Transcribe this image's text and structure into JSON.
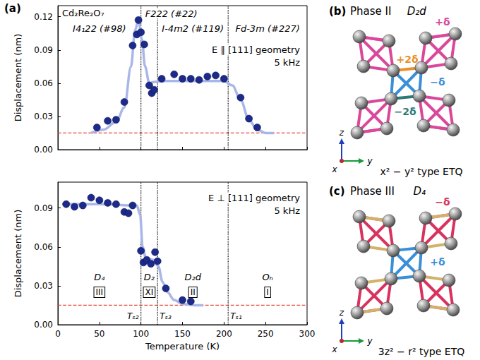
{
  "chart_data": [
    {
      "type": "scatter",
      "panel": "(a)",
      "tick_labels": "y",
      "grid": false,
      "material": "Cd₂Re₂O₇",
      "geometry": "E ∥ [111] geometry",
      "frequency": "5 kHz",
      "space_groups": [
        "I4₁22 (#98)",
        "F222 (#22)",
        "I-4m2 (#119)",
        "Fd-3m (#227)"
      ],
      "y_label": "Displacement (nm)",
      "xlim": [
        0,
        300
      ],
      "xticks": [
        0,
        50,
        100,
        150,
        200,
        250,
        300
      ],
      "ylim": [
        0,
        0.13
      ],
      "yticks": [
        {
          "value": 0,
          "label": "0.00"
        },
        0.03,
        0.06,
        0.09,
        0.12
      ],
      "points": {
        "color": "#1c2a8c",
        "marker": "circle",
        "x": [
          47,
          60,
          70,
          80,
          90,
          95,
          97,
          100,
          104,
          110,
          113,
          116,
          125,
          140,
          150,
          160,
          170,
          180,
          190,
          200,
          220,
          230,
          240
        ],
        "values": [
          0.02,
          0.026,
          0.027,
          0.043,
          0.094,
          0.104,
          0.117,
          0.106,
          0.095,
          0.058,
          0.051,
          0.054,
          0.064,
          0.068,
          0.064,
          0.064,
          0.063,
          0.066,
          0.067,
          0.064,
          0.047,
          0.028,
          0.02
        ]
      },
      "fit": {
        "color": "#a9b6e8",
        "line_style": "solid",
        "x": [
          40,
          55,
          70,
          80,
          88,
          93,
          97,
          101,
          105,
          110,
          115,
          125,
          150,
          200,
          210,
          220,
          230,
          240,
          250,
          260
        ],
        "values": [
          0.015,
          0.018,
          0.025,
          0.038,
          0.075,
          0.108,
          0.117,
          0.1,
          0.075,
          0.06,
          0.061,
          0.062,
          0.062,
          0.062,
          0.058,
          0.045,
          0.027,
          0.018,
          0.015,
          0.015
        ]
      },
      "baseline": {
        "value": 0.015,
        "color": "#e8453c",
        "line_style": "dashed"
      },
      "vlines": [
        {
          "x": 100
        },
        {
          "x": 120
        },
        {
          "x": 205
        }
      ]
    },
    {
      "type": "scatter",
      "tick_labels": true,
      "grid": false,
      "geometry": "E ⊥ [111] geometry",
      "frequency": "5 kHz",
      "phases": [
        {
          "symmetry": "D₄",
          "phase": "III"
        },
        {
          "symmetry": "D₂",
          "phase": "XI"
        },
        {
          "symmetry": "D₂d",
          "phase": "II"
        },
        {
          "symmetry": "Oₕ",
          "phase": "I"
        }
      ],
      "x_label": "Temperature (K)",
      "y_label": "Displacement (nm)",
      "xlim": [
        0,
        300
      ],
      "xticks": [
        0,
        50,
        100,
        150,
        200,
        250,
        300
      ],
      "ylim": [
        0,
        0.11
      ],
      "yticks": [
        {
          "value": 0,
          "label": "0.00"
        },
        0.03,
        0.06,
        0.09
      ],
      "points": {
        "color": "#1c2a8c",
        "marker": "circle",
        "x": [
          10,
          20,
          30,
          40,
          50,
          60,
          70,
          80,
          85,
          90,
          100,
          103,
          107,
          112,
          117,
          120,
          130,
          150,
          160
        ],
        "values": [
          0.093,
          0.091,
          0.092,
          0.098,
          0.096,
          0.094,
          0.093,
          0.087,
          0.086,
          0.092,
          0.057,
          0.048,
          0.05,
          0.047,
          0.056,
          0.049,
          0.028,
          0.019,
          0.018
        ]
      },
      "fit": {
        "color": "#a9b6e8",
        "line_style": "solid",
        "x": [
          5,
          50,
          95,
          99,
          102,
          106,
          115,
          121,
          126,
          132,
          140,
          150,
          165,
          175
        ],
        "values": [
          0.093,
          0.093,
          0.092,
          0.085,
          0.06,
          0.051,
          0.05,
          0.045,
          0.033,
          0.025,
          0.019,
          0.016,
          0.015,
          0.015
        ]
      },
      "baseline": {
        "value": 0.015,
        "color": "#e8453c",
        "line_style": "dashed"
      },
      "vlines": [
        {
          "x": 100,
          "label": "Tₛ₂"
        },
        {
          "x": 120,
          "label": "Tₛ₃"
        },
        {
          "x": 205,
          "label": "Tₛ₁"
        }
      ]
    }
  ],
  "diagrams": [
    {
      "label": "(b)",
      "phase": "Phase II",
      "symmetry": "D₂d",
      "caption": "x² − y² type ETQ",
      "axes": [
        "x",
        "y",
        "z"
      ],
      "bonds": [
        {
          "label": "+δ",
          "color": "#d9489b"
        },
        {
          "label": "+2δ",
          "color": "#e8912a"
        },
        {
          "label": "−2δ",
          "color": "#2b7a78"
        },
        {
          "label": "−δ",
          "color": "#3a8fd8"
        }
      ]
    },
    {
      "label": "(c)",
      "phase": "Phase III",
      "symmetry": "D₄",
      "caption": "3z² − r² type ETQ",
      "axes": [
        "x",
        "y",
        "z"
      ],
      "bonds": [
        {
          "label": "−δ",
          "color": "#d8325e"
        },
        {
          "label": "+δ",
          "color": "#3a8fd8"
        }
      ]
    }
  ]
}
